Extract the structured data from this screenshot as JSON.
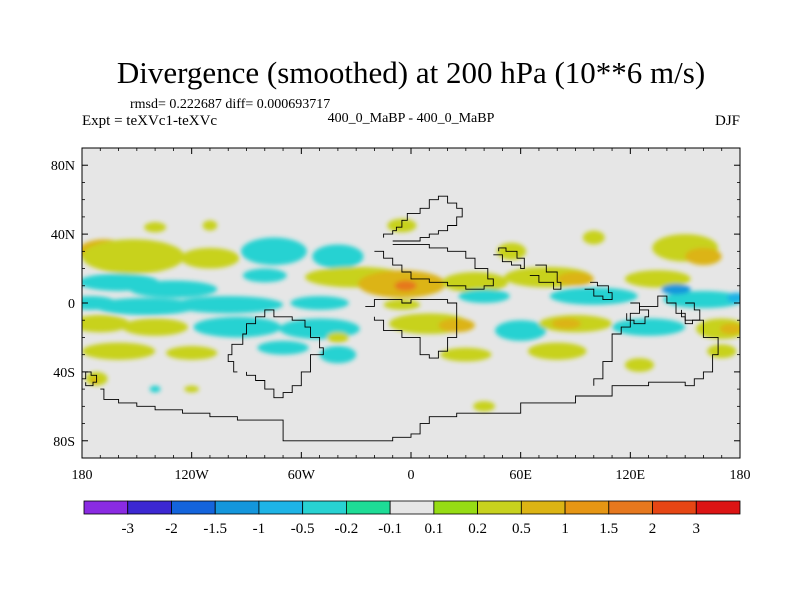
{
  "chart_data": {
    "type": "heatmap",
    "title": "Divergence (smoothed) at 200 hPa (10**6 m/s)",
    "stats_text": "rmsd= 0.222687 diff= 0.000693717",
    "left_label": "Expt = teXVc1-teXVc",
    "center_label": "400_0_MaBP - 400_0_MaBP",
    "right_label": "DJF",
    "x_ticks": [
      {
        "value": -180,
        "label": "180"
      },
      {
        "value": -120,
        "label": "120W"
      },
      {
        "value": -60,
        "label": "60W"
      },
      {
        "value": 0,
        "label": "0"
      },
      {
        "value": 60,
        "label": "60E"
      },
      {
        "value": 120,
        "label": "120E"
      },
      {
        "value": 180,
        "label": "180"
      }
    ],
    "y_ticks": [
      {
        "value": 80,
        "label": "80N"
      },
      {
        "value": 40,
        "label": "40N"
      },
      {
        "value": 0,
        "label": "0"
      },
      {
        "value": -40,
        "label": "40S"
      },
      {
        "value": -80,
        "label": "80S"
      }
    ],
    "xlim": [
      -180,
      180
    ],
    "ylim": [
      -90,
      90
    ],
    "missing_color": "#e6e6e6",
    "colorbar": {
      "colors": [
        "#8a2be2",
        "#3c28d2",
        "#1464dc",
        "#1496dc",
        "#1eb4e6",
        "#28d2d2",
        "#1edc96",
        "#e6e6e6",
        "#96dc14",
        "#c8d21e",
        "#dcb414",
        "#e69614",
        "#e6781e",
        "#e64614",
        "#dc1414"
      ],
      "labels": [
        "-3",
        "-2",
        "-1.5",
        "-1",
        "-0.5",
        "-0.2",
        "-0.1",
        "0.1",
        "0.2",
        "0.5",
        "1",
        "1.5",
        "2",
        "3"
      ]
    },
    "blobs": [
      {
        "lon": -168,
        "lat": 30,
        "rx": 14,
        "ry": 7,
        "v": 0.6
      },
      {
        "lon": -140,
        "lat": 28,
        "rx": 12,
        "ry": 6,
        "v": 0.7
      },
      {
        "lon": -152,
        "lat": 27,
        "rx": 28,
        "ry": 10,
        "v": 0.25
      },
      {
        "lon": -110,
        "lat": 26,
        "rx": 16,
        "ry": 6,
        "v": 0.2
      },
      {
        "lon": -75,
        "lat": 30,
        "rx": 18,
        "ry": 8,
        "v": -0.3
      },
      {
        "lon": -40,
        "lat": 27,
        "rx": 14,
        "ry": 7,
        "v": -0.35
      },
      {
        "lon": -80,
        "lat": 16,
        "rx": 12,
        "ry": 4,
        "v": -0.3
      },
      {
        "lon": -140,
        "lat": 44,
        "rx": 6,
        "ry": 3,
        "v": 0.2
      },
      {
        "lon": -110,
        "lat": 45,
        "rx": 4,
        "ry": 3,
        "v": 0.2
      },
      {
        "lon": -5,
        "lat": 45,
        "rx": 8,
        "ry": 4,
        "v": 0.2
      },
      {
        "lon": 100,
        "lat": 38,
        "rx": 6,
        "ry": 4,
        "v": 0.2
      },
      {
        "lon": 150,
        "lat": 32,
        "rx": 18,
        "ry": 8,
        "v": 0.25
      },
      {
        "lon": 160,
        "lat": 27,
        "rx": 10,
        "ry": 5,
        "v": 0.6
      },
      {
        "lon": 55,
        "lat": 30,
        "rx": 8,
        "ry": 5,
        "v": 0.2
      },
      {
        "lon": -160,
        "lat": 12,
        "rx": 22,
        "ry": 5,
        "v": -0.4
      },
      {
        "lon": -130,
        "lat": 8,
        "rx": 24,
        "ry": 5,
        "v": -0.45
      },
      {
        "lon": -30,
        "lat": 15,
        "rx": 28,
        "ry": 6,
        "v": 0.3
      },
      {
        "lon": -5,
        "lat": 11,
        "rx": 24,
        "ry": 8,
        "v": 0.65
      },
      {
        "lon": -3,
        "lat": 10,
        "rx": 6,
        "ry": 3,
        "v": 1.6
      },
      {
        "lon": 35,
        "lat": 12,
        "rx": 18,
        "ry": 6,
        "v": 0.25
      },
      {
        "lon": 75,
        "lat": 15,
        "rx": 24,
        "ry": 6,
        "v": 0.3
      },
      {
        "lon": 90,
        "lat": 14,
        "rx": 10,
        "ry": 4,
        "v": 0.65
      },
      {
        "lon": 135,
        "lat": 14,
        "rx": 18,
        "ry": 5,
        "v": 0.3
      },
      {
        "lon": -175,
        "lat": 0,
        "rx": 14,
        "ry": 4,
        "v": -0.3
      },
      {
        "lon": -145,
        "lat": -2,
        "rx": 28,
        "ry": 5,
        "v": -0.4
      },
      {
        "lon": -100,
        "lat": -1,
        "rx": 30,
        "ry": 5,
        "v": -0.35
      },
      {
        "lon": -50,
        "lat": 0,
        "rx": 16,
        "ry": 4,
        "v": -0.25
      },
      {
        "lon": -5,
        "lat": -1,
        "rx": 10,
        "ry": 3,
        "v": 0.2
      },
      {
        "lon": 40,
        "lat": 4,
        "rx": 14,
        "ry": 4,
        "v": -0.3
      },
      {
        "lon": 100,
        "lat": 4,
        "rx": 24,
        "ry": 5,
        "v": -0.35
      },
      {
        "lon": 160,
        "lat": 2,
        "rx": 22,
        "ry": 5,
        "v": -0.45
      },
      {
        "lon": 178,
        "lat": 3,
        "rx": 5,
        "ry": 3,
        "v": -0.6
      },
      {
        "lon": 145,
        "lat": 8,
        "rx": 8,
        "ry": 3,
        "v": -1.1
      },
      {
        "lon": -170,
        "lat": -12,
        "rx": 16,
        "ry": 5,
        "v": 0.25
      },
      {
        "lon": -140,
        "lat": -14,
        "rx": 18,
        "ry": 5,
        "v": 0.3
      },
      {
        "lon": -95,
        "lat": -14,
        "rx": 24,
        "ry": 6,
        "v": -0.3
      },
      {
        "lon": -50,
        "lat": -15,
        "rx": 22,
        "ry": 6,
        "v": -0.3
      },
      {
        "lon": -40,
        "lat": -20,
        "rx": 6,
        "ry": 3,
        "v": 0.25
      },
      {
        "lon": 10,
        "lat": -12,
        "rx": 22,
        "ry": 6,
        "v": 0.3
      },
      {
        "lon": 25,
        "lat": -13,
        "rx": 10,
        "ry": 4,
        "v": 0.6
      },
      {
        "lon": 60,
        "lat": -16,
        "rx": 14,
        "ry": 6,
        "v": -0.3
      },
      {
        "lon": 90,
        "lat": -12,
        "rx": 20,
        "ry": 5,
        "v": 0.3
      },
      {
        "lon": 85,
        "lat": -12,
        "rx": 8,
        "ry": 3,
        "v": 0.65
      },
      {
        "lon": 130,
        "lat": -14,
        "rx": 20,
        "ry": 5,
        "v": -0.35
      },
      {
        "lon": 170,
        "lat": -15,
        "rx": 14,
        "ry": 6,
        "v": 0.3
      },
      {
        "lon": 175,
        "lat": -15,
        "rx": 6,
        "ry": 3,
        "v": 0.7
      },
      {
        "lon": -160,
        "lat": -28,
        "rx": 20,
        "ry": 5,
        "v": 0.25
      },
      {
        "lon": -120,
        "lat": -29,
        "rx": 14,
        "ry": 4,
        "v": 0.2
      },
      {
        "lon": -70,
        "lat": -26,
        "rx": 14,
        "ry": 4,
        "v": -0.3
      },
      {
        "lon": -40,
        "lat": -30,
        "rx": 10,
        "ry": 5,
        "v": -0.25
      },
      {
        "lon": 30,
        "lat": -30,
        "rx": 14,
        "ry": 4,
        "v": 0.25
      },
      {
        "lon": 80,
        "lat": -28,
        "rx": 16,
        "ry": 5,
        "v": 0.25
      },
      {
        "lon": 125,
        "lat": -36,
        "rx": 8,
        "ry": 4,
        "v": 0.2
      },
      {
        "lon": 170,
        "lat": -28,
        "rx": 8,
        "ry": 4,
        "v": 0.25
      },
      {
        "lon": -172,
        "lat": -44,
        "rx": 6,
        "ry": 4,
        "v": 0.3
      },
      {
        "lon": -173,
        "lat": -45,
        "rx": 2,
        "ry": 2,
        "v": 0.7
      },
      {
        "lon": -140,
        "lat": -50,
        "rx": 3,
        "ry": 2,
        "v": -0.3
      },
      {
        "lon": -120,
        "lat": -50,
        "rx": 4,
        "ry": 2,
        "v": 0.2
      },
      {
        "lon": 40,
        "lat": -60,
        "rx": 6,
        "ry": 3,
        "v": 0.2
      }
    ],
    "coastlines": [
      [
        [
          -170,
          -50
        ],
        [
          -168,
          -56
        ],
        [
          -160,
          -58
        ],
        [
          -150,
          -60
        ],
        [
          -140,
          -62
        ],
        [
          -125,
          -64
        ],
        [
          -110,
          -66
        ],
        [
          -95,
          -68
        ],
        [
          -70,
          -70
        ],
        [
          -70,
          -80
        ],
        [
          -20,
          -80
        ],
        [
          -10,
          -78
        ],
        [
          0,
          -76
        ],
        [
          5,
          -74
        ],
        [
          5,
          -70
        ],
        [
          10,
          -66
        ],
        [
          20,
          -66
        ],
        [
          25,
          -64
        ],
        [
          50,
          -64
        ],
        [
          60,
          -58
        ],
        [
          90,
          -54
        ],
        [
          110,
          -48
        ],
        [
          130,
          -46
        ],
        [
          150,
          -48
        ],
        [
          155,
          -44
        ],
        [
          160,
          -40
        ],
        [
          165,
          -30
        ],
        [
          168,
          -20
        ],
        [
          160,
          -10
        ],
        [
          150,
          -6
        ],
        [
          145,
          0
        ],
        [
          140,
          4
        ],
        [
          135,
          -2
        ],
        [
          125,
          -6
        ],
        [
          120,
          -14
        ],
        [
          115,
          -18
        ],
        [
          110,
          -22
        ],
        [
          110,
          -34
        ],
        [
          105,
          -44
        ],
        [
          100,
          -48
        ]
      ],
      [
        [
          -180,
          -44
        ],
        [
          -178,
          -40
        ],
        [
          -175,
          -42
        ],
        [
          -172,
          -46
        ],
        [
          -174,
          -48
        ],
        [
          -178,
          -46
        ]
      ],
      [
        [
          -95,
          -40
        ],
        [
          -97,
          -34
        ],
        [
          -100,
          -30
        ],
        [
          -98,
          -24
        ],
        [
          -92,
          -18
        ],
        [
          -90,
          -12
        ],
        [
          -85,
          -8
        ],
        [
          -80,
          -4
        ],
        [
          -75,
          -8
        ],
        [
          -65,
          -10
        ],
        [
          -58,
          -14
        ],
        [
          -55,
          -20
        ],
        [
          -50,
          -26
        ],
        [
          -48,
          -30
        ],
        [
          -55,
          -40
        ],
        [
          -60,
          -48
        ],
        [
          -65,
          -52
        ],
        [
          -70,
          -55
        ],
        [
          -75,
          -50
        ],
        [
          -80,
          -45
        ],
        [
          -85,
          -42
        ],
        [
          -90,
          -40
        ]
      ],
      [
        [
          -25,
          -2
        ],
        [
          -20,
          2
        ],
        [
          -10,
          2
        ],
        [
          -5,
          0
        ],
        [
          0,
          2
        ],
        [
          10,
          2
        ],
        [
          20,
          0
        ],
        [
          25,
          -2
        ],
        [
          25,
          -10
        ],
        [
          25,
          -20
        ],
        [
          20,
          -28
        ],
        [
          15,
          -32
        ],
        [
          10,
          -30
        ],
        [
          5,
          -20
        ],
        [
          -5,
          -16
        ],
        [
          -15,
          -10
        ],
        [
          -20,
          -8
        ]
      ],
      [
        [
          -15,
          38
        ],
        [
          -15,
          40
        ],
        [
          -10,
          42
        ],
        [
          -8,
          44
        ],
        [
          -5,
          48
        ],
        [
          -2,
          52
        ],
        [
          5,
          55
        ],
        [
          10,
          60
        ],
        [
          15,
          62
        ],
        [
          20,
          58
        ],
        [
          25,
          55
        ],
        [
          28,
          50
        ],
        [
          25,
          45
        ],
        [
          20,
          42
        ],
        [
          15,
          40
        ],
        [
          10,
          38
        ],
        [
          5,
          36
        ],
        [
          0,
          36
        ],
        [
          -5,
          36
        ],
        [
          -10,
          36
        ]
      ],
      [
        [
          -20,
          30
        ],
        [
          -15,
          26
        ],
        [
          -10,
          22
        ],
        [
          -5,
          18
        ],
        [
          0,
          14
        ],
        [
          10,
          12
        ],
        [
          20,
          10
        ],
        [
          30,
          8
        ],
        [
          40,
          10
        ],
        [
          45,
          14
        ],
        [
          42,
          20
        ],
        [
          35,
          26
        ],
        [
          30,
          30
        ],
        [
          20,
          32
        ],
        [
          10,
          34
        ],
        [
          0,
          34
        ],
        [
          -10,
          34
        ]
      ],
      [
        [
          45,
          28
        ],
        [
          50,
          24
        ],
        [
          55,
          22
        ],
        [
          60,
          20
        ],
        [
          62,
          26
        ],
        [
          58,
          30
        ],
        [
          52,
          32
        ],
        [
          48,
          30
        ]
      ],
      [
        [
          65,
          16
        ],
        [
          70,
          12
        ],
        [
          78,
          8
        ],
        [
          82,
          12
        ],
        [
          80,
          18
        ],
        [
          74,
          22
        ],
        [
          68,
          22
        ]
      ],
      [
        [
          95,
          8
        ],
        [
          100,
          4
        ],
        [
          105,
          2
        ],
        [
          110,
          6
        ],
        [
          108,
          10
        ],
        [
          102,
          12
        ],
        [
          98,
          12
        ]
      ],
      [
        [
          120,
          0
        ],
        [
          125,
          -4
        ],
        [
          130,
          -8
        ],
        [
          128,
          -12
        ],
        [
          122,
          -10
        ],
        [
          118,
          -6
        ]
      ],
      [
        [
          150,
          0
        ],
        [
          155,
          -4
        ],
        [
          158,
          -10
        ],
        [
          154,
          -12
        ],
        [
          150,
          -8
        ],
        [
          148,
          -4
        ]
      ]
    ]
  }
}
